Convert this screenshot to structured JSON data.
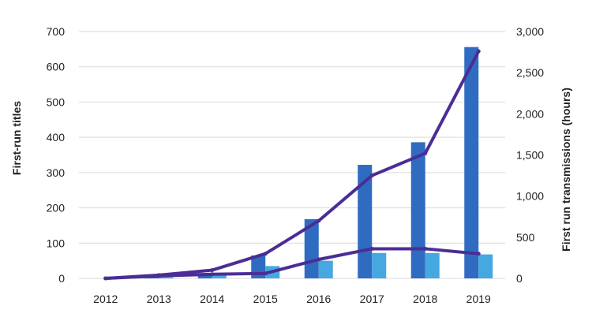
{
  "chart_data": {
    "type": "bar",
    "title": "",
    "xlabel": "",
    "ylabel": "First-run titles",
    "y2label": "First run transmissions (hours)",
    "ylim": [
      0,
      700
    ],
    "y2lim": [
      0,
      3000
    ],
    "yticks": [
      "0",
      "100",
      "200",
      "300",
      "400",
      "500",
      "600",
      "700"
    ],
    "y2ticks": [
      "0",
      "500",
      "1,000",
      "1,500",
      "2,000",
      "2,500",
      "3,000"
    ],
    "categories": [
      "2012",
      "2013",
      "2014",
      "2015",
      "2016",
      "2017",
      "2018",
      "2019"
    ],
    "grid": true,
    "series": [
      {
        "kind": "bar",
        "axis": "left",
        "color": "#2f6cc1",
        "values": [
          0,
          5,
          15,
          65,
          168,
          322,
          386,
          656
        ]
      },
      {
        "kind": "bar",
        "axis": "left",
        "color": "#45a8e0",
        "values": [
          0,
          3,
          10,
          35,
          50,
          72,
          72,
          68
        ]
      },
      {
        "kind": "line",
        "axis": "right",
        "color": "#4b2d96",
        "values": [
          0,
          40,
          100,
          300,
          700,
          1250,
          1520,
          2760
        ]
      },
      {
        "kind": "line",
        "axis": "right",
        "color": "#4b2d96",
        "values": [
          0,
          30,
          50,
          60,
          230,
          360,
          360,
          300
        ]
      }
    ]
  }
}
